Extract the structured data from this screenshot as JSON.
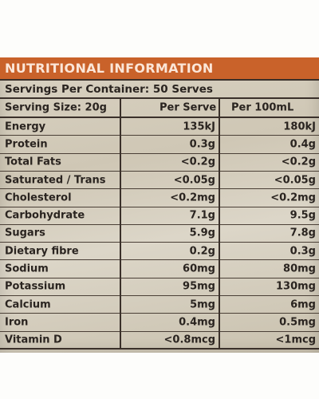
{
  "table": {
    "title": "NUTRITIONAL INFORMATION",
    "servings_per_container": "Servings Per Container: 50 Serves",
    "columns": [
      "Serving Size: 20g",
      "Per Serve",
      "Per 100mL"
    ],
    "rows": [
      {
        "nutrient": "Energy",
        "per_serve": "135kJ",
        "per_100ml": "180kJ"
      },
      {
        "nutrient": "Protein",
        "per_serve": "0.3g",
        "per_100ml": "0.4g"
      },
      {
        "nutrient": "Total Fats",
        "per_serve": "<0.2g",
        "per_100ml": "<0.2g"
      },
      {
        "nutrient": "Saturated / Trans",
        "per_serve": "<0.05g",
        "per_100ml": "<0.05g"
      },
      {
        "nutrient": "Cholesterol",
        "per_serve": "<0.2mg",
        "per_100ml": "<0.2mg"
      },
      {
        "nutrient": "Carbohydrate",
        "per_serve": "7.1g",
        "per_100ml": "9.5g"
      },
      {
        "nutrient": "Sugars",
        "per_serve": "5.9g",
        "per_100ml": "7.8g"
      },
      {
        "nutrient": "Dietary fibre",
        "per_serve": "0.2g",
        "per_100ml": "0.3g"
      },
      {
        "nutrient": "Sodium",
        "per_serve": "60mg",
        "per_100ml": "80mg"
      },
      {
        "nutrient": "Potassium",
        "per_serve": "95mg",
        "per_100ml": "130mg"
      },
      {
        "nutrient": "Calcium",
        "per_serve": "5mg",
        "per_100ml": "6mg"
      },
      {
        "nutrient": "Iron",
        "per_serve": "0.4mg",
        "per_100ml": "0.5mg"
      },
      {
        "nutrient": "Vitamin D",
        "per_serve": "<0.8mcg",
        "per_100ml": "<1mcg"
      }
    ]
  },
  "colors": {
    "header_band": "#c9622a",
    "header_text": "#fbe6d8",
    "panel": "#d6cfbf",
    "ink": "#2a2420"
  }
}
